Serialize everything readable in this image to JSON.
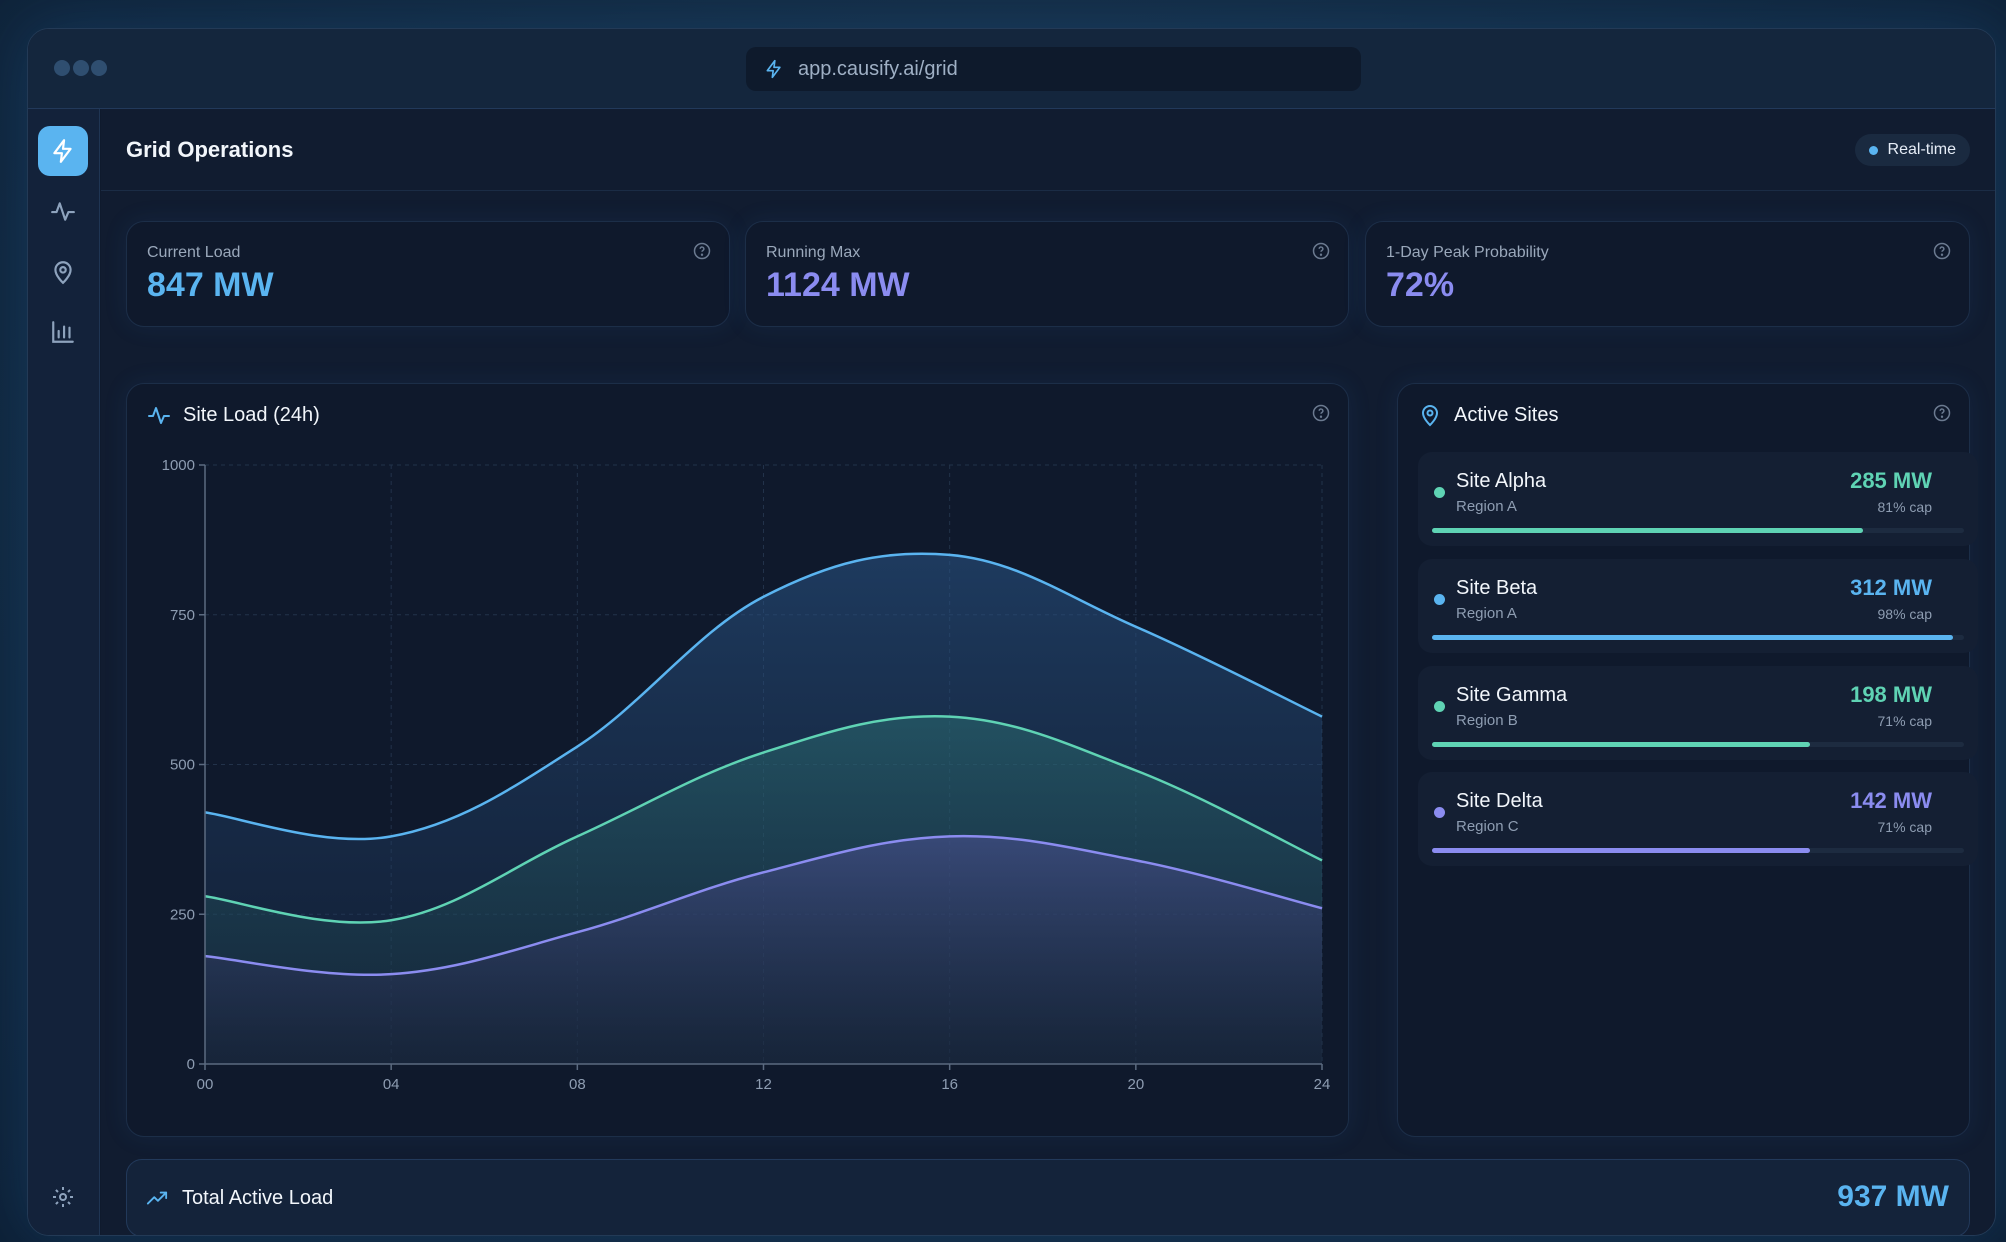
{
  "window": {
    "url": "app.causify.ai/grid"
  },
  "header": {
    "title": "Grid Operations",
    "live_label": "Real-time"
  },
  "sidebar": {
    "items": [
      {
        "icon": "zap-icon",
        "active": true
      },
      {
        "icon": "activity-icon",
        "active": false
      },
      {
        "icon": "map-pin-icon",
        "active": false
      },
      {
        "icon": "bar-chart-icon",
        "active": false
      }
    ],
    "footer_icon": "gear-icon"
  },
  "kpis": [
    {
      "label": "Current Load",
      "value": "847 MW",
      "color": "#5ab4f0"
    },
    {
      "label": "Running Max",
      "value": "1124 MW",
      "color": "#8b8cf0"
    },
    {
      "label": "1-Day Peak Probability",
      "value": "72%",
      "color": "#8b8cf0"
    }
  ],
  "chart_panel": {
    "title": "Site Load (24h)"
  },
  "chart_data": {
    "type": "area",
    "x_ticks": [
      "00",
      "04",
      "08",
      "12",
      "16",
      "20",
      "24"
    ],
    "y_ticks": [
      "0",
      "250",
      "500",
      "750",
      "1000"
    ],
    "ylim": [
      0,
      1000
    ],
    "xlim": [
      0,
      24
    ],
    "grid": true,
    "x": [
      0,
      4,
      8,
      12,
      16,
      20,
      24
    ],
    "series": [
      {
        "values": [
          420,
          380,
          530,
          780,
          850,
          730,
          580
        ],
        "color": "#5ab4f0"
      },
      {
        "values": [
          280,
          240,
          380,
          520,
          580,
          490,
          340
        ],
        "color": "#5fd3b4"
      },
      {
        "values": [
          180,
          150,
          220,
          320,
          380,
          340,
          260
        ],
        "color": "#8b8cf0"
      }
    ]
  },
  "sites_panel": {
    "title": "Active Sites",
    "sites": [
      {
        "name": "Site Alpha",
        "region": "Region A",
        "load": "285 MW",
        "cap_label": "81% cap",
        "cap": 0.81,
        "color": "#5fd3b4"
      },
      {
        "name": "Site Beta",
        "region": "Region A",
        "load": "312 MW",
        "cap_label": "98% cap",
        "cap": 0.98,
        "color": "#5ab4f0"
      },
      {
        "name": "Site Gamma",
        "region": "Region B",
        "load": "198 MW",
        "cap_label": "71% cap",
        "cap": 0.71,
        "color": "#5fd3b4"
      },
      {
        "name": "Site Delta",
        "region": "Region C",
        "load": "142 MW",
        "cap_label": "71% cap",
        "cap": 0.71,
        "color": "#8b8cf0"
      }
    ]
  },
  "total": {
    "label": "Total Active Load",
    "value": "937 MW"
  }
}
